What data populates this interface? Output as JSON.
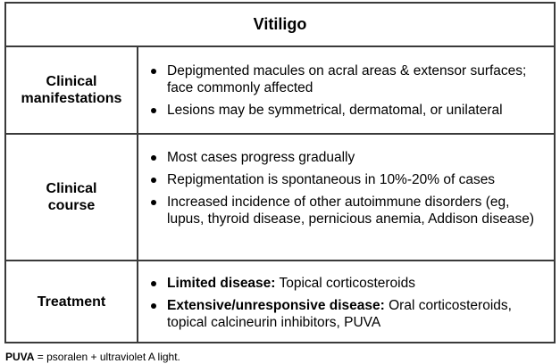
{
  "table": {
    "title": "Vitiligo",
    "rows": [
      {
        "label": "Clinical\nmanifestations",
        "items": [
          {
            "bold": "",
            "text": "Depigmented macules on acral areas & extensor surfaces; face commonly affected"
          },
          {
            "bold": "",
            "text": "Lesions may be symmetrical, dermatomal, or unilateral"
          }
        ]
      },
      {
        "label": "Clinical\ncourse",
        "items": [
          {
            "bold": "",
            "text": "Most cases progress gradually"
          },
          {
            "bold": "",
            "text": "Repigmentation is spontaneous in 10%-20% of cases"
          },
          {
            "bold": "",
            "text": "Increased incidence of other autoimmune disorders (eg, lupus, thyroid disease, pernicious anemia, Addison disease)"
          }
        ]
      },
      {
        "label": "Treatment",
        "items": [
          {
            "bold": "Limited disease:",
            "text": " Topical corticosteroids"
          },
          {
            "bold": "Extensive/unresponsive disease:",
            "text": " Oral corticosteroids, topical calcineurin inhibitors, PUVA"
          }
        ]
      }
    ]
  },
  "footnote": {
    "abbr": "PUVA",
    "text": " = psoralen + ultraviolet A light."
  }
}
